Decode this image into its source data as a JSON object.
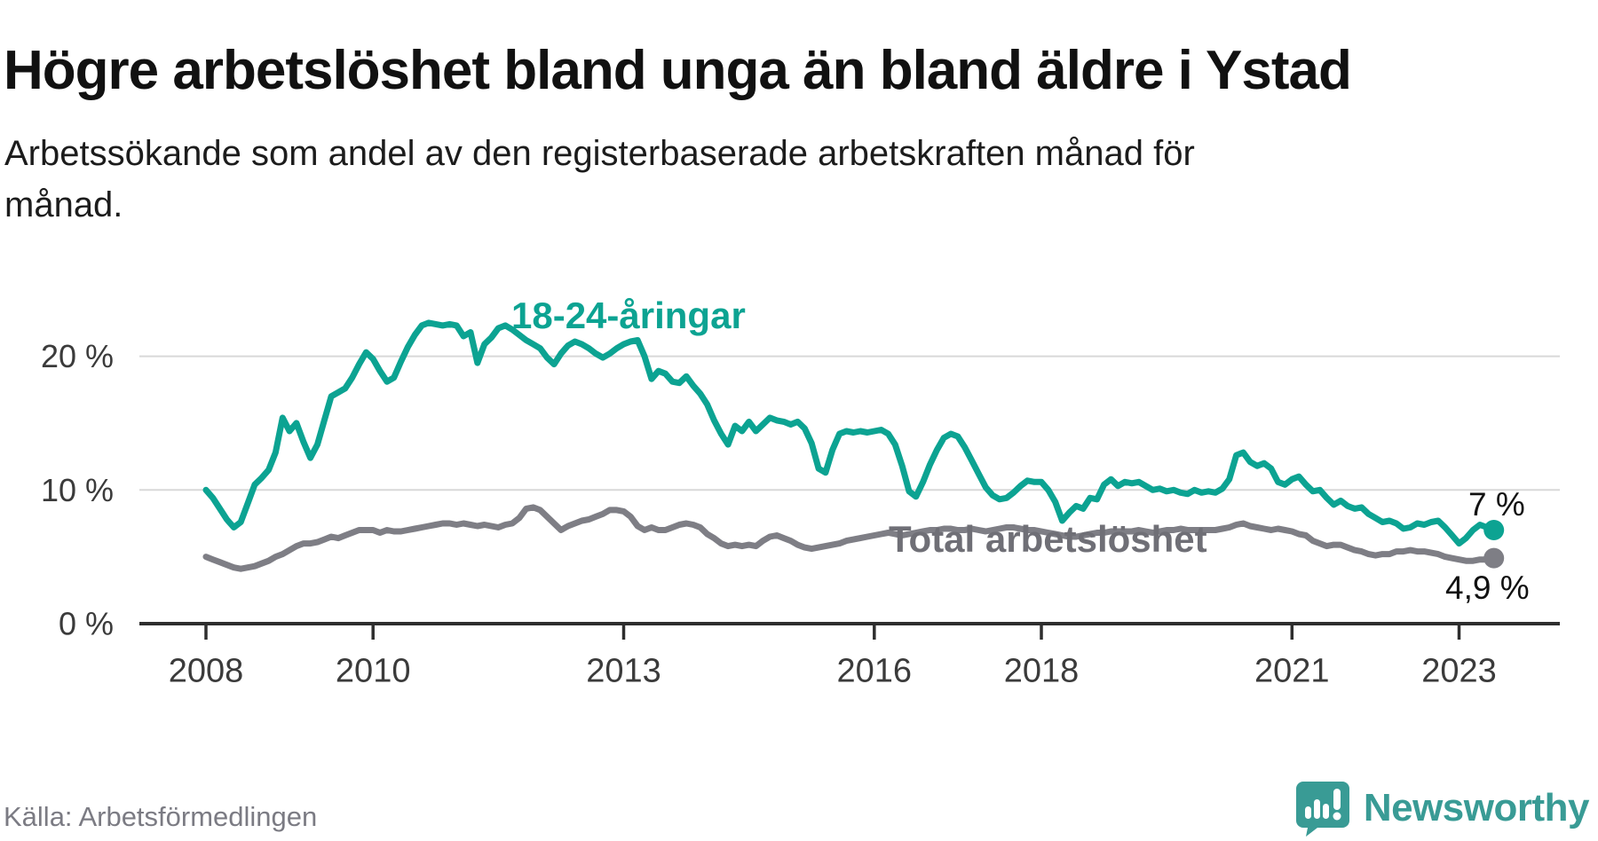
{
  "title": "Högre arbetslöshet bland unga än bland äldre i Ystad",
  "subtitle": "Arbetssökande som andel av den registerbaserade arbetskraften månad för månad.",
  "source": "Källa: Arbetsförmedlingen",
  "logo": {
    "text": "Newsworthy",
    "icon": "speech-bubble-bar-chart-icon",
    "color": "#399b95"
  },
  "colors": {
    "young_line": "#0ca392",
    "total_line": "#7e7e85",
    "total_label": "#6f6f76",
    "gridline": "#d8d8d8",
    "axis": "#2e2e2e",
    "tick_text": "#3b3b3b",
    "value_label_text": "#111111"
  },
  "chart_data": {
    "type": "line",
    "title": "Högre arbetslöshet bland unga än bland äldre i Ystad",
    "subtitle": "Arbetssökande som andel av den registerbaserade arbetskraften månad för månad.",
    "x_unit": "month",
    "x_start": "2008-01",
    "x_end": "2023-06",
    "x_tick_years": [
      2008,
      2010,
      2013,
      2016,
      2018,
      2021,
      2023
    ],
    "y_ticks": [
      0,
      10,
      20
    ],
    "y_tick_suffix": " %",
    "ylim": [
      0,
      23.5
    ],
    "grid": "horizontal",
    "legend_position": "inline-labels",
    "series": [
      {
        "name": "18-24-åringar",
        "color": "#0ca392",
        "end_label": "7 %",
        "end_value": 7.0,
        "values": [
          10.0,
          9.4,
          8.6,
          7.8,
          7.2,
          7.6,
          9.0,
          10.4,
          10.9,
          11.5,
          12.8,
          15.4,
          14.4,
          15.0,
          13.6,
          12.4,
          13.4,
          15.2,
          17.0,
          17.3,
          17.6,
          18.4,
          19.4,
          20.3,
          19.8,
          18.9,
          18.1,
          18.4,
          19.6,
          20.7,
          21.6,
          22.3,
          22.5,
          22.4,
          22.3,
          22.4,
          22.3,
          21.5,
          21.8,
          19.5,
          20.9,
          21.4,
          22.1,
          22.3,
          22.0,
          21.6,
          21.2,
          20.9,
          20.6,
          19.9,
          19.4,
          20.2,
          20.8,
          21.1,
          20.9,
          20.6,
          20.2,
          19.9,
          20.2,
          20.6,
          20.9,
          21.1,
          21.2,
          20.0,
          18.3,
          18.9,
          18.7,
          18.1,
          18.0,
          18.5,
          17.8,
          17.2,
          16.4,
          15.2,
          14.2,
          13.4,
          14.8,
          14.4,
          15.1,
          14.4,
          14.9,
          15.4,
          15.2,
          15.1,
          14.9,
          15.1,
          14.6,
          13.5,
          11.6,
          11.3,
          13.0,
          14.2,
          14.4,
          14.3,
          14.4,
          14.3,
          14.4,
          14.5,
          14.2,
          13.4,
          11.8,
          9.9,
          9.5,
          10.6,
          11.9,
          13.0,
          13.9,
          14.2,
          14.0,
          13.2,
          12.2,
          11.2,
          10.2,
          9.6,
          9.3,
          9.4,
          9.8,
          10.3,
          10.7,
          10.6,
          10.6,
          10.0,
          9.1,
          7.7,
          8.3,
          8.8,
          8.6,
          9.4,
          9.3,
          10.4,
          10.8,
          10.3,
          10.6,
          10.5,
          10.6,
          10.3,
          10.0,
          10.1,
          9.9,
          10.0,
          9.8,
          9.7,
          10.0,
          9.8,
          9.9,
          9.8,
          10.1,
          10.8,
          12.6,
          12.8,
          12.1,
          11.8,
          12.0,
          11.6,
          10.6,
          10.4,
          10.8,
          11.0,
          10.4,
          9.9,
          10.0,
          9.4,
          8.9,
          9.2,
          8.8,
          8.6,
          8.7,
          8.2,
          7.9,
          7.6,
          7.7,
          7.5,
          7.1,
          7.2,
          7.5,
          7.4,
          7.6,
          7.7,
          7.2,
          6.6,
          6.0,
          6.4,
          7.0,
          7.4,
          7.2,
          7.0
        ]
      },
      {
        "name": "Total arbetslöshet",
        "color": "#7e7e85",
        "end_label": "4,9 %",
        "end_value": 4.9,
        "values": [
          5.0,
          4.8,
          4.6,
          4.4,
          4.2,
          4.1,
          4.2,
          4.3,
          4.5,
          4.7,
          5.0,
          5.2,
          5.5,
          5.8,
          6.0,
          6.0,
          6.1,
          6.3,
          6.5,
          6.4,
          6.6,
          6.8,
          7.0,
          7.0,
          7.0,
          6.8,
          7.0,
          6.9,
          6.9,
          7.0,
          7.1,
          7.2,
          7.3,
          7.4,
          7.5,
          7.5,
          7.4,
          7.5,
          7.4,
          7.3,
          7.4,
          7.3,
          7.2,
          7.4,
          7.5,
          7.9,
          8.6,
          8.7,
          8.5,
          8.0,
          7.5,
          7.0,
          7.3,
          7.5,
          7.7,
          7.8,
          8.0,
          8.2,
          8.5,
          8.5,
          8.4,
          8.0,
          7.3,
          7.0,
          7.2,
          7.0,
          7.0,
          7.2,
          7.4,
          7.5,
          7.4,
          7.2,
          6.7,
          6.4,
          6.0,
          5.8,
          5.9,
          5.8,
          5.9,
          5.8,
          6.2,
          6.5,
          6.6,
          6.4,
          6.2,
          5.9,
          5.7,
          5.6,
          5.7,
          5.8,
          5.9,
          6.0,
          6.2,
          6.3,
          6.4,
          6.5,
          6.6,
          6.7,
          6.8,
          6.7,
          6.6,
          6.7,
          6.8,
          6.9,
          7.0,
          7.0,
          7.1,
          7.1,
          7.0,
          7.0,
          7.1,
          7.0,
          6.9,
          7.0,
          7.1,
          7.2,
          7.2,
          7.1,
          7.0,
          7.0,
          6.9,
          6.8,
          6.7,
          6.6,
          6.5,
          6.5,
          6.6,
          6.7,
          6.8,
          6.8,
          6.9,
          6.9,
          6.9,
          6.9,
          7.0,
          6.9,
          6.8,
          6.9,
          7.0,
          7.0,
          7.1,
          7.0,
          7.0,
          7.0,
          7.0,
          7.0,
          7.1,
          7.2,
          7.4,
          7.5,
          7.3,
          7.2,
          7.1,
          7.0,
          7.1,
          7.0,
          6.9,
          6.7,
          6.6,
          6.2,
          6.0,
          5.8,
          5.9,
          5.9,
          5.7,
          5.5,
          5.4,
          5.2,
          5.1,
          5.2,
          5.2,
          5.4,
          5.4,
          5.5,
          5.4,
          5.4,
          5.3,
          5.2,
          5.0,
          4.9,
          4.8,
          4.7,
          4.7,
          4.8,
          4.8,
          4.9
        ]
      }
    ]
  }
}
